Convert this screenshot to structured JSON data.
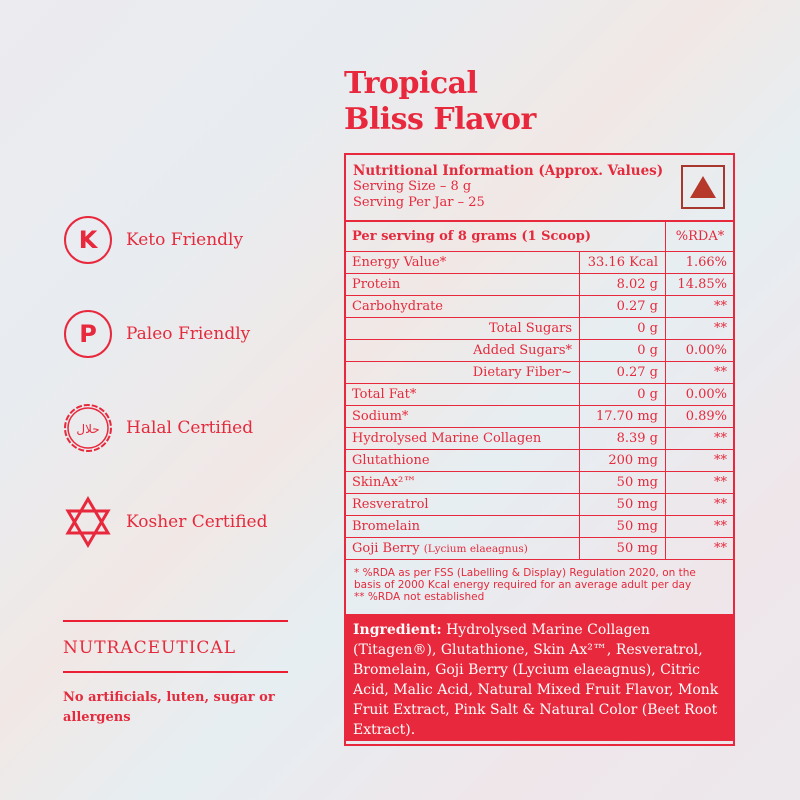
{
  "title": [
    "Tropical",
    "Bliss Flavor"
  ],
  "badges": [
    {
      "icon": "keto-k-icon",
      "label": "Keto Friendly"
    },
    {
      "icon": "paleo-p-icon",
      "label": "Paleo Friendly"
    },
    {
      "icon": "halal-seal-icon",
      "label": "Halal Certified",
      "seal_text": "حلال"
    },
    {
      "icon": "star-of-david-icon",
      "label": "Kosher Certified"
    }
  ],
  "category": "NUTRACEUTICAL",
  "claim": "No artificials, luten, sugar or allergens",
  "colors": {
    "accent": "#e8283c",
    "veg_mark": "#b5382a"
  },
  "panel": {
    "heading": "Nutritional Information (Approx. Values)",
    "serving_size": "Serving Size – 8 g",
    "servings_per_jar": "Serving Per Jar – 25",
    "per_serving": "Per serving of 8 grams (1 Scoop)",
    "rda_header": "%RDA*",
    "rows": [
      {
        "name": "Energy Value*",
        "value": "33.16 Kcal",
        "rda": "1.66%"
      },
      {
        "name": "Protein",
        "value": "8.02 g",
        "rda": "14.85%"
      },
      {
        "name": "Carbohydrate",
        "value": "0.27 g",
        "rda": "**"
      },
      {
        "name": "Total Sugars",
        "value": "0 g",
        "rda": "**",
        "indent": true
      },
      {
        "name": "Added Sugars*",
        "value": "0 g",
        "rda": "0.00%",
        "indent": true
      },
      {
        "name": "Dietary Fiber~",
        "value": "0.27 g",
        "rda": "**",
        "indent": true
      },
      {
        "name": "Total Fat*",
        "value": "0 g",
        "rda": "0.00%"
      },
      {
        "name": "Sodium*",
        "value": "17.70 mg",
        "rda": "0.89%"
      },
      {
        "name": "Hydrolysed Marine Collagen",
        "value": "8.39 g",
        "rda": "**"
      },
      {
        "name": "Glutathione",
        "value": "200 mg",
        "rda": "**"
      },
      {
        "name": "SkinAx²™",
        "value": "50 mg",
        "rda": "**"
      },
      {
        "name": "Resveratrol",
        "value": "50 mg",
        "rda": "**"
      },
      {
        "name": "Bromelain",
        "value": "50 mg",
        "rda": "**"
      },
      {
        "name": "Goji Berry",
        "sub": "(Lycium elaeagnus)",
        "value": "50 mg",
        "rda": "**"
      }
    ],
    "footnote1": "* %RDA as per FSS (Labelling & Display) Regulation 2020, on the basis of 2000 Kcal energy required for an average adult per day",
    "footnote2": "** %RDA not established",
    "ingredient_label": "Ingredient:",
    "ingredients": " Hydrolysed Marine Collagen (Titagen®), Glutathione, Skin Ax²™, Resveratrol, Bromelain, Goji Berry (Lycium elaeagnus), Citric Acid, Malic Acid, Natural Mixed Fruit Flavor, Monk Fruit Extract, Pink Salt & Natural Color (Beet Root Extract)."
  }
}
